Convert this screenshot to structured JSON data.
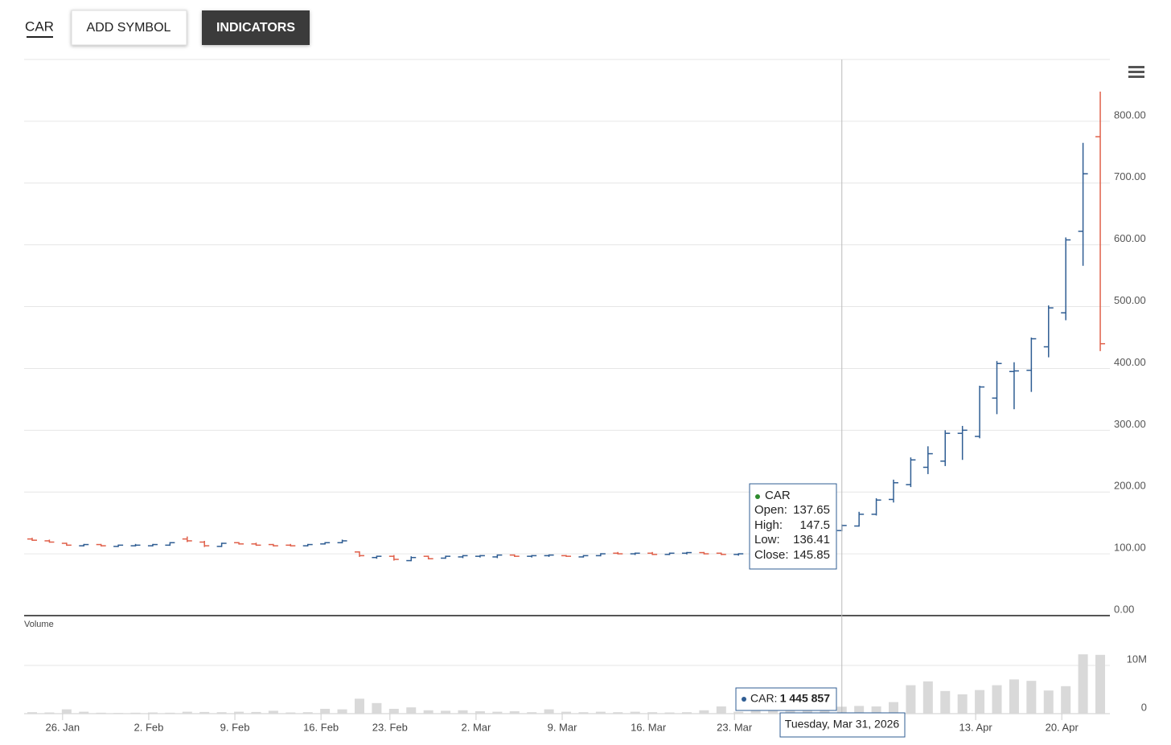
{
  "toolbar": {
    "symbol": "CAR",
    "add_symbol": "ADD SYMBOL",
    "indicators": "INDICATORS"
  },
  "chart_data": {
    "type": "ohlc",
    "categories": [
      "2026-01-22",
      "2026-01-23",
      "2026-01-26",
      "2026-01-27",
      "2026-01-28",
      "2026-01-29",
      "2026-01-30",
      "2026-02-02",
      "2026-02-03",
      "2026-02-04",
      "2026-02-05",
      "2026-02-06",
      "2026-02-09",
      "2026-02-10",
      "2026-02-11",
      "2026-02-12",
      "2026-02-13",
      "2026-02-17",
      "2026-02-18",
      "2026-02-19",
      "2026-02-20",
      "2026-02-23",
      "2026-02-24",
      "2026-02-25",
      "2026-02-26",
      "2026-02-27",
      "2026-03-02",
      "2026-03-03",
      "2026-03-04",
      "2026-03-05",
      "2026-03-06",
      "2026-03-09",
      "2026-03-10",
      "2026-03-11",
      "2026-03-12",
      "2026-03-13",
      "2026-03-16",
      "2026-03-17",
      "2026-03-18",
      "2026-03-19",
      "2026-03-20",
      "2026-03-23",
      "2026-03-24",
      "2026-03-25",
      "2026-03-26",
      "2026-03-27",
      "2026-03-30",
      "2026-03-31",
      "2026-04-01",
      "2026-04-02",
      "2026-04-06",
      "2026-04-07",
      "2026-04-08",
      "2026-04-09",
      "2026-04-10",
      "2026-04-13",
      "2026-04-14",
      "2026-04-15",
      "2026-04-16",
      "2026-04-17",
      "2026-04-20",
      "2026-04-21",
      "2026-04-22"
    ],
    "series": [
      {
        "name": "CAR",
        "up_color": "#2f5d93",
        "down_color": "#e0604a",
        "open": [
          124,
          121,
          117,
          113,
          115,
          112,
          113,
          113,
          114,
          124,
          119,
          112,
          118,
          116,
          115,
          114,
          113,
          116,
          118,
          103,
          94,
          96,
          89,
          96,
          93,
          95,
          96,
          95,
          98,
          96,
          97,
          97,
          95,
          97,
          101,
          100,
          101,
          99,
          101,
          102,
          101,
          99,
          104,
          106,
          108,
          112,
          120,
          137.65,
          145,
          164,
          188,
          212,
          240,
          250,
          295,
          290,
          352,
          395,
          397,
          435,
          490,
          622,
          775
        ],
        "high": [
          126,
          123,
          118,
          116,
          116,
          115,
          116,
          116,
          119,
          128,
          121,
          118,
          119,
          118,
          116,
          116,
          116,
          119,
          123,
          104,
          97,
          98,
          96,
          97,
          97,
          98,
          98,
          99,
          99,
          98,
          99,
          98,
          98,
          101,
          103,
          102,
          103,
          102,
          103,
          103,
          102,
          101,
          108,
          110,
          114,
          120,
          135,
          147.5,
          168,
          190,
          220,
          256,
          274,
          300,
          307,
          372,
          412,
          410,
          450,
          502,
          612,
          765,
          848
        ],
        "low": [
          121,
          118,
          113,
          112,
          112,
          111,
          112,
          112,
          113,
          119,
          111,
          111,
          115,
          113,
          112,
          112,
          112,
          115,
          117,
          95,
          92,
          89,
          88,
          91,
          92,
          93,
          94,
          93,
          95,
          94,
          95,
          95,
          94,
          96,
          99,
          98,
          98,
          98,
          99,
          99,
          98,
          97,
          102,
          104,
          107,
          110,
          118,
          136.41,
          144,
          162,
          183,
          208,
          229,
          242,
          252,
          287,
          326,
          334,
          362,
          418,
          478,
          566,
          428
        ],
        "close": [
          122,
          119,
          114,
          115,
          113,
          114,
          114,
          115,
          118,
          121,
          113,
          117,
          116,
          114,
          113,
          113,
          115,
          118,
          121,
          97,
          96,
          91,
          94,
          92,
          96,
          97,
          97,
          98,
          96,
          97,
          98,
          96,
          97,
          100,
          100,
          101,
          99,
          101,
          102,
          100,
          99,
          100,
          106,
          108,
          112,
          118,
          132,
          145.85,
          164,
          187,
          215,
          252,
          262,
          295,
          300,
          370,
          408,
          396,
          448,
          498,
          608,
          715,
          440
        ]
      }
    ],
    "ylim": [
      0,
      900
    ],
    "yticks": [
      {
        "value": 0,
        "label": "0.00"
      },
      {
        "value": 100,
        "label": "100.00"
      },
      {
        "value": 200,
        "label": "200.00"
      },
      {
        "value": 300,
        "label": "300.00"
      },
      {
        "value": 400,
        "label": "400.00"
      },
      {
        "value": 500,
        "label": "500.00"
      },
      {
        "value": 600,
        "label": "600.00"
      },
      {
        "value": 700,
        "label": "700.00"
      },
      {
        "value": 800,
        "label": "800.00"
      }
    ],
    "xticks": [
      {
        "value": "2026-01-26",
        "label": "26. Jan"
      },
      {
        "value": "2026-02-02",
        "label": "2. Feb"
      },
      {
        "value": "2026-02-09",
        "label": "9. Feb"
      },
      {
        "value": "2026-02-16",
        "label": "16. Feb"
      },
      {
        "value": "2026-02-23",
        "label": "23. Feb"
      },
      {
        "value": "2026-03-02",
        "label": "2. Mar"
      },
      {
        "value": "2026-03-09",
        "label": "9. Mar"
      },
      {
        "value": "2026-03-16",
        "label": "16. Mar"
      },
      {
        "value": "2026-03-23",
        "label": "23. Mar"
      },
      {
        "value": "2026-04-13",
        "label": "13. Apr"
      },
      {
        "value": "2026-04-20",
        "label": "20. Apr"
      }
    ],
    "grid": true,
    "volume": {
      "label": "Volume",
      "color": "#d9d9d9",
      "values": [
        300000,
        250000,
        900000,
        400000,
        200000,
        150000,
        200000,
        250000,
        200000,
        400000,
        350000,
        300000,
        400000,
        350000,
        600000,
        250000,
        300000,
        1000000,
        900000,
        3100000,
        2200000,
        1000000,
        1300000,
        700000,
        600000,
        700000,
        500000,
        400000,
        500000,
        300000,
        900000,
        400000,
        300000,
        400000,
        300000,
        400000,
        300000,
        250000,
        300000,
        700000,
        1500000,
        400000,
        800000,
        900000,
        1000000,
        1200000,
        1300000,
        1445857,
        1600000,
        1500000,
        2400000,
        5900000,
        6700000,
        4700000,
        4000000,
        4900000,
        5900000,
        7100000,
        6800000,
        4800000,
        5700000,
        12300000,
        12200000
      ],
      "ylim": [
        0,
        20000000
      ],
      "yticks": [
        0,
        {
          "value": 10000000,
          "label": "10M"
        }
      ]
    },
    "tooltip": {
      "name": "CAR",
      "open_label": "Open:",
      "high_label": "High:",
      "low_label": "Low:",
      "close_label": "Close:",
      "volume_label": "CAR:",
      "volume_value": "1 445 857",
      "date": "Tuesday, Mar 31, 2026"
    }
  }
}
